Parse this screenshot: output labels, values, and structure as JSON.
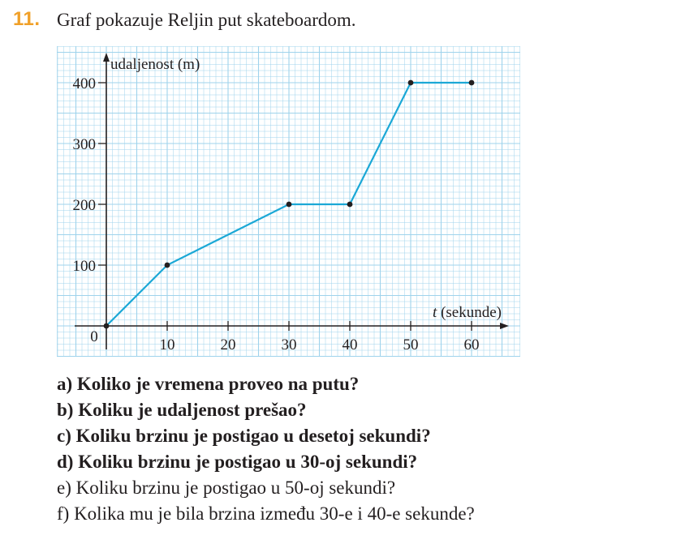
{
  "task": {
    "number": "11.",
    "title": "Graf pokazuje Reljin put skateboardom."
  },
  "chart_data": {
    "type": "line",
    "x": [
      0,
      10,
      30,
      40,
      50,
      60
    ],
    "y": [
      0,
      100,
      200,
      200,
      400,
      400
    ],
    "origin_label": "0",
    "xlabel_italic": "t",
    "xlabel_rest": " (sekunde)",
    "ylabel": "udaljenost (m)",
    "x_ticks": [
      10,
      20,
      30,
      40,
      50,
      60
    ],
    "x_tick_labels": [
      "10",
      "20",
      "30",
      "40",
      "50",
      "60"
    ],
    "y_ticks": [
      100,
      200,
      300,
      400
    ],
    "y_tick_labels": [
      "100",
      "200",
      "300",
      "400"
    ],
    "xlim": [
      0,
      65
    ],
    "ylim": [
      0,
      430
    ],
    "grid": true,
    "line_color": "#1ba8d6",
    "point_color": "#231f20",
    "grid_color": "#9fd3ec"
  },
  "questions": [
    "a) Koliko je vremena proveo na putu?",
    "b) Koliku je udaljenost prešao?",
    "c) Koliku brzinu je postigao u desetoj sekundi?",
    "d) Koliku brzinu je postigao u 30-oj sekundi?",
    "e) Koliku brzinu je postigao u 50-oj sekundi?",
    "f) Kolika mu je bila brzina između 30-e i 40-e sekunde?"
  ]
}
